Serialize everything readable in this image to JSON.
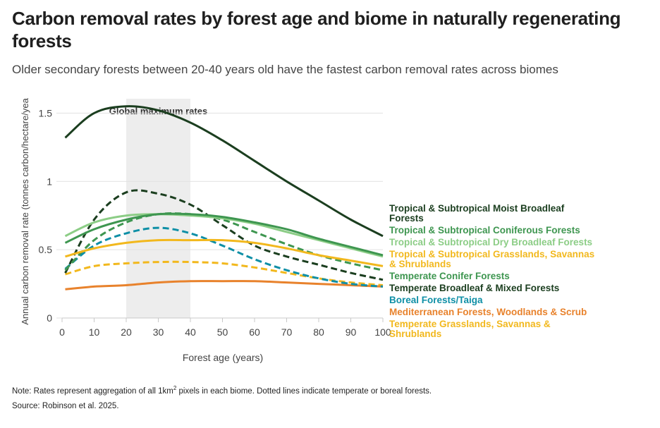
{
  "title": "Carbon removal rates by forest age and biome in naturally regenerating forests",
  "subtitle": "Older secondary forests between 20-40 years old have the fastest carbon removal rates across biomes",
  "note_prefix": "Note: Rates represent aggregation of all 1km",
  "note_sup": "2",
  "note_suffix": " pixels in each biome. Dotted lines indicate temperate or boreal forests.",
  "source": "Source: Robinson et al. 2025.",
  "chart_data": {
    "type": "line",
    "xlabel": "Forest age (years)",
    "ylabel": "Annual carbon removal rate (tonnes carbon/hectare/yea",
    "xlim": [
      0,
      100
    ],
    "ylim": [
      0,
      1.6
    ],
    "xticks": [
      0,
      10,
      20,
      30,
      40,
      50,
      60,
      70,
      80,
      90,
      100
    ],
    "yticks": [
      0,
      0.5,
      1,
      1.5
    ],
    "ytick_labels": [
      "0",
      "0.5",
      "1",
      "1.5"
    ],
    "grid": "horizontal",
    "highlight_band": {
      "x0": 20,
      "x1": 40,
      "label": "Global maximum rates",
      "color": "#ededed"
    },
    "x": [
      1,
      10,
      20,
      30,
      40,
      50,
      60,
      70,
      80,
      90,
      100
    ],
    "series": [
      {
        "name": "Tropical & Subtropical Moist Broadleaf Forests",
        "color": "#1b3e1f",
        "dashed": false,
        "label_lines": [
          "Tropical & Subtropical Moist Broadleaf",
          "Forests"
        ],
        "values": [
          1.32,
          1.5,
          1.55,
          1.52,
          1.43,
          1.3,
          1.15,
          1.0,
          0.86,
          0.72,
          0.6
        ]
      },
      {
        "name": "Tropical & Subtropical Coniferous Forests",
        "color": "#3e9650",
        "dashed": false,
        "label_lines": [
          "Tropical & Subtropical Coniferous Forests"
        ],
        "values": [
          0.55,
          0.65,
          0.72,
          0.76,
          0.76,
          0.74,
          0.7,
          0.65,
          0.58,
          0.52,
          0.46
        ]
      },
      {
        "name": "Tropical & Subtropical Dry Broadleaf Forests",
        "color": "#8ccd86",
        "dashed": false,
        "label_lines": [
          "Tropical & Subtropical Dry Broadleaf Forests"
        ],
        "values": [
          0.6,
          0.7,
          0.75,
          0.76,
          0.75,
          0.73,
          0.69,
          0.63,
          0.57,
          0.51,
          0.45
        ]
      },
      {
        "name": "Tropical & Subtropical Grasslands, Savannas & Shrublands",
        "color": "#f2b81d",
        "dashed": false,
        "label_lines": [
          "Tropical & Subtropical Grasslands, Savannas",
          "& Shrublands"
        ],
        "values": [
          0.45,
          0.51,
          0.55,
          0.57,
          0.57,
          0.57,
          0.55,
          0.51,
          0.46,
          0.42,
          0.38
        ]
      },
      {
        "name": "Temperate Conifer Forests",
        "color": "#3e9650",
        "dashed": true,
        "label_lines": [
          "Temperate Conifer Forests"
        ],
        "values": [
          0.35,
          0.57,
          0.7,
          0.76,
          0.76,
          0.72,
          0.63,
          0.54,
          0.46,
          0.4,
          0.35
        ]
      },
      {
        "name": "Temperate Broadleaf & Mixed Forests",
        "color": "#1b3e1f",
        "dashed": true,
        "label_lines": [
          "Temperate Broadleaf & Mixed Forests"
        ],
        "values": [
          0.33,
          0.72,
          0.92,
          0.91,
          0.83,
          0.68,
          0.53,
          0.45,
          0.39,
          0.33,
          0.28
        ]
      },
      {
        "name": "Boreal Forests/Taiga",
        "color": "#0e8fa6",
        "dashed": true,
        "label_lines": [
          "Boreal Forests/Taiga"
        ],
        "values": [
          0.36,
          0.53,
          0.62,
          0.66,
          0.62,
          0.53,
          0.43,
          0.35,
          0.29,
          0.25,
          0.23
        ]
      },
      {
        "name": "Mediterranean Forests, Woodlands & Scrub",
        "color": "#e8822c",
        "dashed": false,
        "label_lines": [
          "Mediterranean Forests, Woodlands & Scrub"
        ],
        "values": [
          0.21,
          0.23,
          0.24,
          0.26,
          0.27,
          0.27,
          0.27,
          0.26,
          0.25,
          0.24,
          0.23
        ]
      },
      {
        "name": "Temperate Grasslands, Savannas & Shrublands",
        "color": "#f2b81d",
        "dashed": true,
        "label_lines": [
          "Temperate Grasslands, Savannas &",
          "Shrublands"
        ],
        "values": [
          0.32,
          0.38,
          0.4,
          0.41,
          0.41,
          0.4,
          0.37,
          0.33,
          0.29,
          0.26,
          0.24
        ]
      }
    ]
  }
}
